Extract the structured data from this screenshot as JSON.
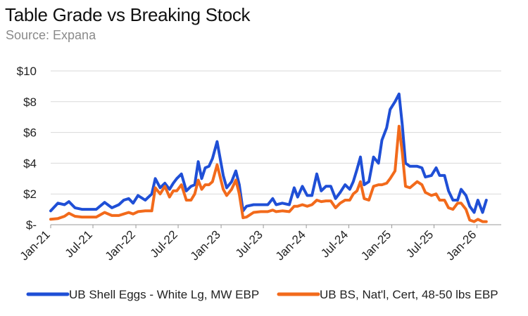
{
  "chart_data": {
    "type": "line",
    "title": "Table Grade vs Breaking Stock",
    "subtitle": "Source: Expana",
    "xlabel": "",
    "ylabel": "",
    "ylim": [
      0,
      10
    ],
    "y_ticks": [
      0,
      2,
      4,
      6,
      8,
      10
    ],
    "y_tick_labels": [
      "$-",
      "$2",
      "$4",
      "$6",
      "$8",
      "$10"
    ],
    "x_ticks": [
      "2021-01",
      "2021-07",
      "2022-01",
      "2022-07",
      "2023-01",
      "2023-07",
      "2024-01",
      "2024-07",
      "2025-01",
      "2025-07",
      "2026-01"
    ],
    "x_tick_labels": [
      "Jan-21",
      "Jul-21",
      "Jan-22",
      "Jul-22",
      "Jan-23",
      "Jul-23",
      "Jan-24",
      "Jul-24",
      "Jan-25",
      "Jul-25",
      "Jan-26"
    ],
    "grid": "horizontal",
    "legend_position": "bottom",
    "series": [
      {
        "name": "UB Shell Eggs - White Lg, MW EBP",
        "color": "#1f4fd6",
        "points": [
          [
            "2021-01-01",
            0.9
          ],
          [
            "2021-02-01",
            1.4
          ],
          [
            "2021-03-01",
            1.3
          ],
          [
            "2021-03-20",
            1.5
          ],
          [
            "2021-04-15",
            1.1
          ],
          [
            "2021-05-15",
            1.0
          ],
          [
            "2021-06-15",
            1.0
          ],
          [
            "2021-07-15",
            1.0
          ],
          [
            "2021-08-20",
            1.45
          ],
          [
            "2021-09-20",
            1.1
          ],
          [
            "2021-10-20",
            1.3
          ],
          [
            "2021-11-10",
            1.6
          ],
          [
            "2021-12-01",
            1.7
          ],
          [
            "2021-12-20",
            1.4
          ],
          [
            "2022-01-10",
            1.9
          ],
          [
            "2022-02-10",
            1.6
          ],
          [
            "2022-03-10",
            2.0
          ],
          [
            "2022-03-25",
            3.0
          ],
          [
            "2022-04-15",
            2.4
          ],
          [
            "2022-05-05",
            2.7
          ],
          [
            "2022-05-25",
            2.3
          ],
          [
            "2022-06-10",
            2.7
          ],
          [
            "2022-06-25",
            3.0
          ],
          [
            "2022-07-15",
            3.3
          ],
          [
            "2022-08-05",
            2.2
          ],
          [
            "2022-08-25",
            2.5
          ],
          [
            "2022-09-10",
            2.6
          ],
          [
            "2022-09-25",
            4.1
          ],
          [
            "2022-10-10",
            3.0
          ],
          [
            "2022-10-25",
            3.7
          ],
          [
            "2022-11-10",
            3.8
          ],
          [
            "2022-11-25",
            4.3
          ],
          [
            "2022-12-15",
            5.4
          ],
          [
            "2023-01-10",
            3.2
          ],
          [
            "2023-01-25",
            2.4
          ],
          [
            "2023-02-15",
            2.8
          ],
          [
            "2023-03-05",
            3.5
          ],
          [
            "2023-03-20",
            2.6
          ],
          [
            "2023-04-05",
            0.9
          ],
          [
            "2023-04-20",
            1.2
          ],
          [
            "2023-05-20",
            1.3
          ],
          [
            "2023-06-20",
            1.3
          ],
          [
            "2023-07-20",
            1.3
          ],
          [
            "2023-08-10",
            1.7
          ],
          [
            "2023-08-25",
            1.3
          ],
          [
            "2023-09-20",
            1.4
          ],
          [
            "2023-10-20",
            1.3
          ],
          [
            "2023-11-10",
            2.4
          ],
          [
            "2023-11-25",
            1.8
          ],
          [
            "2023-12-15",
            2.5
          ],
          [
            "2024-01-05",
            1.9
          ],
          [
            "2024-01-25",
            1.9
          ],
          [
            "2024-02-15",
            3.3
          ],
          [
            "2024-03-05",
            2.2
          ],
          [
            "2024-03-25",
            2.5
          ],
          [
            "2024-04-15",
            2.5
          ],
          [
            "2024-05-05",
            1.7
          ],
          [
            "2024-05-25",
            2.1
          ],
          [
            "2024-06-15",
            2.6
          ],
          [
            "2024-07-05",
            2.3
          ],
          [
            "2024-07-20",
            2.8
          ],
          [
            "2024-08-05",
            3.6
          ],
          [
            "2024-08-20",
            4.4
          ],
          [
            "2024-09-05",
            2.6
          ],
          [
            "2024-09-25",
            2.8
          ],
          [
            "2024-10-15",
            4.4
          ],
          [
            "2024-11-05",
            4.0
          ],
          [
            "2024-11-20",
            5.5
          ],
          [
            "2024-12-10",
            6.3
          ],
          [
            "2024-12-25",
            7.5
          ],
          [
            "2025-01-15",
            8.0
          ],
          [
            "2025-02-01",
            8.5
          ],
          [
            "2025-02-15",
            6.5
          ],
          [
            "2025-03-01",
            4.0
          ],
          [
            "2025-03-20",
            3.8
          ],
          [
            "2025-04-20",
            3.8
          ],
          [
            "2025-05-10",
            3.7
          ],
          [
            "2025-05-25",
            3.1
          ],
          [
            "2025-06-20",
            3.2
          ],
          [
            "2025-07-10",
            3.7
          ],
          [
            "2025-07-25",
            3.2
          ],
          [
            "2025-08-15",
            3.2
          ],
          [
            "2025-09-01",
            2.2
          ],
          [
            "2025-09-20",
            1.6
          ],
          [
            "2025-10-10",
            1.6
          ],
          [
            "2025-10-25",
            2.3
          ],
          [
            "2025-11-15",
            1.9
          ],
          [
            "2025-12-01",
            1.2
          ],
          [
            "2025-12-20",
            0.8
          ],
          [
            "2026-01-05",
            1.6
          ],
          [
            "2026-01-25",
            0.8
          ],
          [
            "2026-02-10",
            1.6
          ]
        ]
      },
      {
        "name": "UB BS, Nat'l, Cert, 48-50 lbs EBP",
        "color": "#f26a1b",
        "points": [
          [
            "2021-01-01",
            0.35
          ],
          [
            "2021-02-01",
            0.4
          ],
          [
            "2021-03-01",
            0.55
          ],
          [
            "2021-03-20",
            0.75
          ],
          [
            "2021-04-15",
            0.55
          ],
          [
            "2021-05-15",
            0.5
          ],
          [
            "2021-06-15",
            0.5
          ],
          [
            "2021-07-15",
            0.5
          ],
          [
            "2021-08-20",
            0.8
          ],
          [
            "2021-09-20",
            0.6
          ],
          [
            "2021-10-20",
            0.6
          ],
          [
            "2021-11-10",
            0.7
          ],
          [
            "2021-12-01",
            0.8
          ],
          [
            "2021-12-20",
            0.7
          ],
          [
            "2022-01-10",
            0.85
          ],
          [
            "2022-02-10",
            0.9
          ],
          [
            "2022-03-10",
            0.9
          ],
          [
            "2022-03-25",
            2.4
          ],
          [
            "2022-04-15",
            2.0
          ],
          [
            "2022-05-05",
            2.5
          ],
          [
            "2022-05-25",
            1.8
          ],
          [
            "2022-06-10",
            2.2
          ],
          [
            "2022-06-25",
            2.2
          ],
          [
            "2022-07-15",
            2.6
          ],
          [
            "2022-08-05",
            1.6
          ],
          [
            "2022-08-25",
            1.6
          ],
          [
            "2022-09-10",
            2.0
          ],
          [
            "2022-09-25",
            2.9
          ],
          [
            "2022-10-10",
            2.3
          ],
          [
            "2022-10-25",
            2.6
          ],
          [
            "2022-11-10",
            2.6
          ],
          [
            "2022-11-25",
            2.8
          ],
          [
            "2022-12-15",
            3.9
          ],
          [
            "2023-01-10",
            2.3
          ],
          [
            "2023-01-25",
            1.9
          ],
          [
            "2023-02-15",
            2.3
          ],
          [
            "2023-03-05",
            2.9
          ],
          [
            "2023-03-20",
            2.0
          ],
          [
            "2023-04-05",
            0.45
          ],
          [
            "2023-04-20",
            0.5
          ],
          [
            "2023-05-20",
            0.8
          ],
          [
            "2023-06-20",
            0.85
          ],
          [
            "2023-07-20",
            0.85
          ],
          [
            "2023-08-10",
            0.95
          ],
          [
            "2023-08-25",
            0.85
          ],
          [
            "2023-09-20",
            0.9
          ],
          [
            "2023-10-20",
            0.85
          ],
          [
            "2023-11-10",
            1.2
          ],
          [
            "2023-11-25",
            1.2
          ],
          [
            "2023-12-15",
            1.3
          ],
          [
            "2024-01-05",
            1.2
          ],
          [
            "2024-01-25",
            1.3
          ],
          [
            "2024-02-15",
            1.6
          ],
          [
            "2024-03-05",
            1.5
          ],
          [
            "2024-03-25",
            1.55
          ],
          [
            "2024-04-15",
            1.55
          ],
          [
            "2024-05-05",
            1.1
          ],
          [
            "2024-05-25",
            1.4
          ],
          [
            "2024-06-15",
            1.6
          ],
          [
            "2024-07-05",
            1.6
          ],
          [
            "2024-07-20",
            2.0
          ],
          [
            "2024-08-05",
            2.2
          ],
          [
            "2024-08-20",
            2.8
          ],
          [
            "2024-09-05",
            1.7
          ],
          [
            "2024-09-25",
            1.6
          ],
          [
            "2024-10-15",
            2.5
          ],
          [
            "2024-11-05",
            2.6
          ],
          [
            "2024-11-20",
            2.6
          ],
          [
            "2024-12-10",
            2.7
          ],
          [
            "2024-12-25",
            3.0
          ],
          [
            "2025-01-15",
            3.5
          ],
          [
            "2025-02-01",
            6.4
          ],
          [
            "2025-02-15",
            4.7
          ],
          [
            "2025-03-01",
            2.5
          ],
          [
            "2025-03-20",
            2.4
          ],
          [
            "2025-04-20",
            2.8
          ],
          [
            "2025-05-10",
            2.6
          ],
          [
            "2025-05-25",
            2.1
          ],
          [
            "2025-06-20",
            1.9
          ],
          [
            "2025-07-10",
            2.0
          ],
          [
            "2025-07-25",
            1.6
          ],
          [
            "2025-08-15",
            1.6
          ],
          [
            "2025-09-01",
            1.1
          ],
          [
            "2025-09-20",
            1.0
          ],
          [
            "2025-10-10",
            1.4
          ],
          [
            "2025-10-25",
            1.4
          ],
          [
            "2025-11-15",
            1.0
          ],
          [
            "2025-12-01",
            0.3
          ],
          [
            "2025-12-20",
            0.2
          ],
          [
            "2026-01-05",
            0.35
          ],
          [
            "2026-01-25",
            0.2
          ],
          [
            "2026-02-10",
            0.2
          ]
        ]
      }
    ]
  }
}
